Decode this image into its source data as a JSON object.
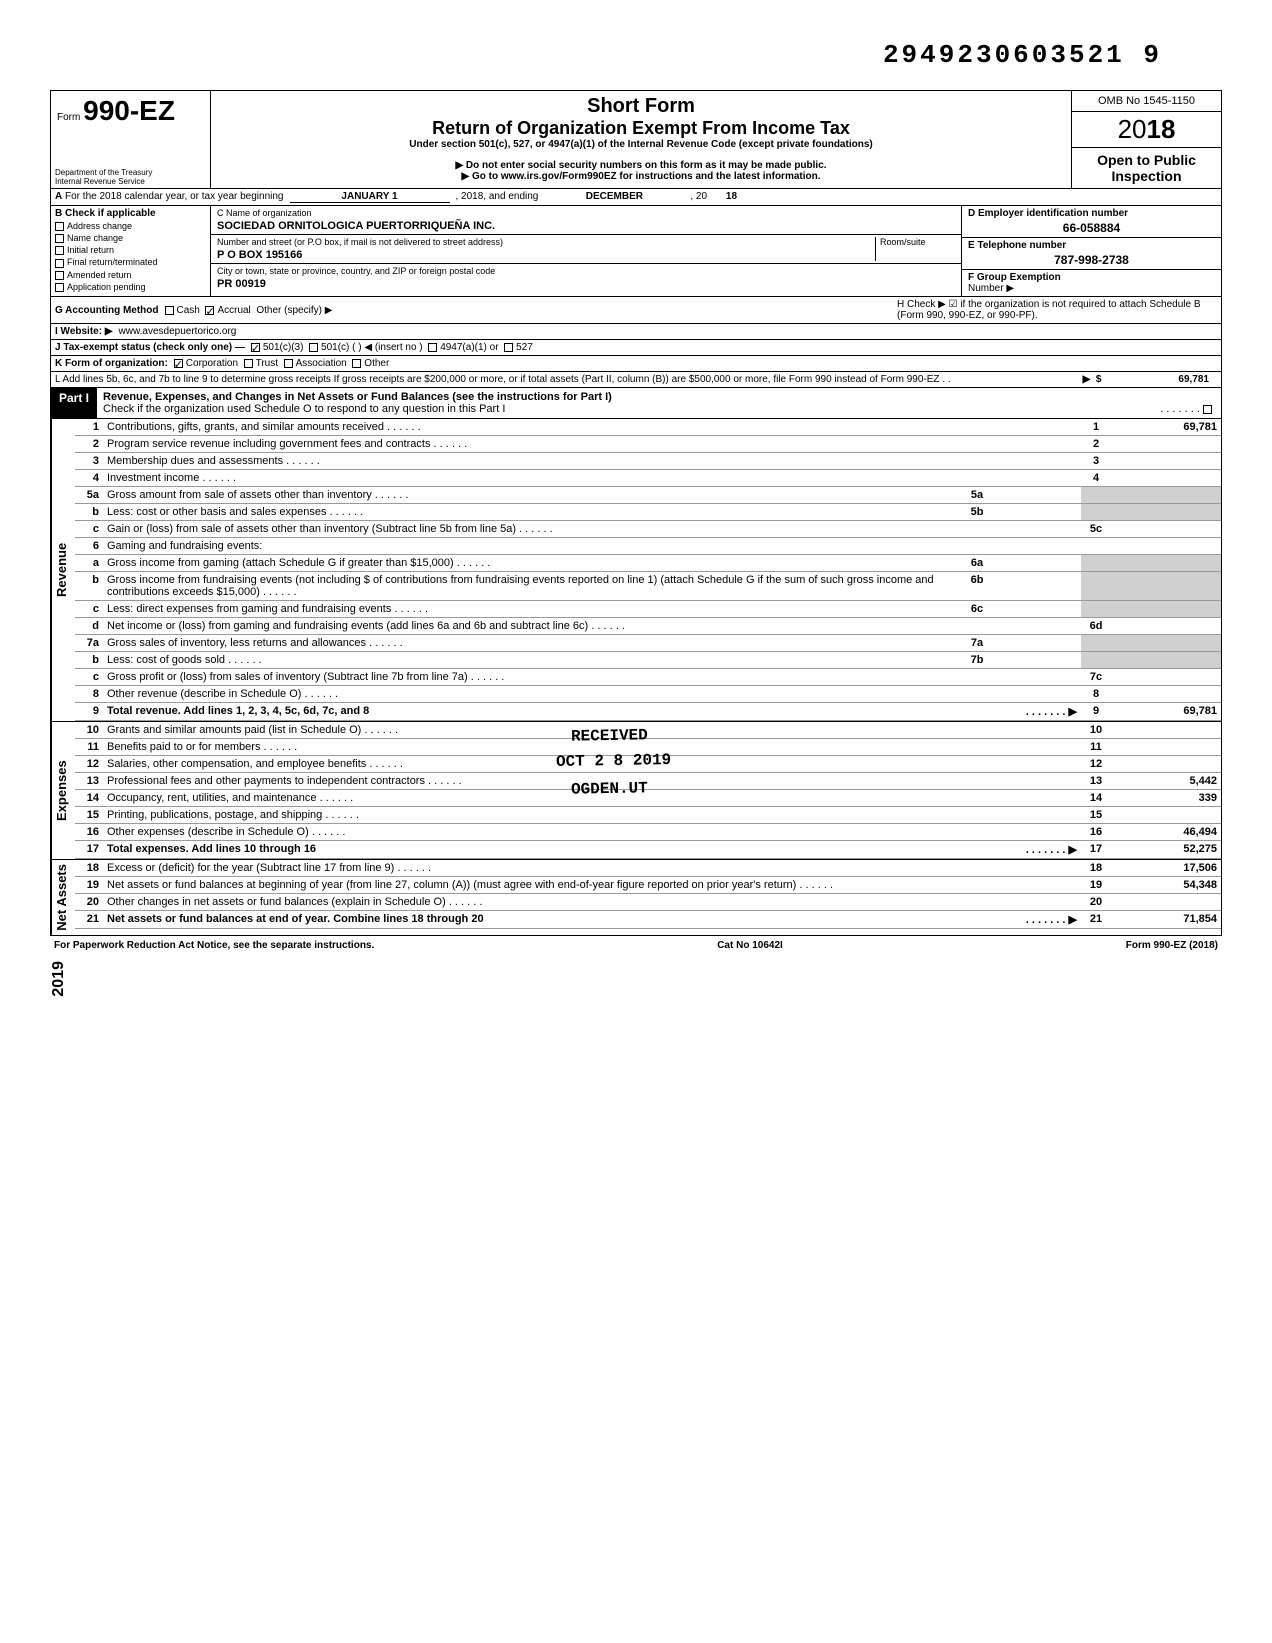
{
  "top_number": "2949230603521 9",
  "header": {
    "form_prefix": "Form",
    "form_number": "990-EZ",
    "title1": "Short Form",
    "title2": "Return of Organization Exempt From Income Tax",
    "subtitle": "Under section 501(c), 527, or 4947(a)(1) of the Internal Revenue Code (except private foundations)",
    "note1": "▶ Do not enter social security numbers on this form as it may be made public.",
    "note2": "▶ Go to www.irs.gov/Form990EZ for instructions and the latest information.",
    "dept": "Department of the Treasury\nInternal Revenue Service",
    "omb": "OMB No 1545-1150",
    "year_prefix": "20",
    "year_bold": "18",
    "public": "Open to Public Inspection"
  },
  "row_a": {
    "label": "A",
    "text": "For the 2018 calendar year, or tax year beginning",
    "begin_val": "JANUARY 1",
    "mid": ", 2018, and ending",
    "end_month": "DECEMBER",
    "end_text": ", 20",
    "end_yr": "18"
  },
  "col_b": {
    "header": "B Check if applicable",
    "items": [
      "Address change",
      "Name change",
      "Initial return",
      "Final return/terminated",
      "Amended return",
      "Application pending"
    ]
  },
  "org": {
    "c_label": "C  Name of organization",
    "name": "SOCIEDAD ORNITOLOGICA PUERTORRIQUEÑA INC.",
    "addr_label": "Number and street (or P.O  box, if mail is not delivered to street address)",
    "room_label": "Room/suite",
    "addr": "P O BOX 195166",
    "city_label": "City or town, state or province, country, and ZIP or foreign postal code",
    "city": "PR 00919"
  },
  "right_box": {
    "d_label": "D Employer identification number",
    "ein": "66-058884",
    "e_label": "E Telephone number",
    "phone": "787-998-2738",
    "f_label": "F Group Exemption",
    "f_label2": "Number ▶"
  },
  "g": {
    "label": "G Accounting Method",
    "opts": [
      "Cash",
      "Accrual"
    ],
    "other": "Other (specify) ▶",
    "checked": 1
  },
  "h": {
    "text": "H Check ▶ ☑ if the organization is not required to attach Schedule B (Form 990, 990-EZ, or 990-PF)."
  },
  "i": {
    "label": "I  Website: ▶",
    "val": "www.avesdepuertorico.org"
  },
  "j": {
    "label": "J Tax-exempt status (check only one) —",
    "opts": [
      "501(c)(3)",
      "501(c) (    ) ◀ (insert no )",
      "4947(a)(1) or",
      "527"
    ],
    "checked": 0
  },
  "k": {
    "label": "K Form of organization:",
    "opts": [
      "Corporation",
      "Trust",
      "Association",
      "Other"
    ],
    "checked": 0
  },
  "l": {
    "text": "L  Add lines 5b, 6c, and 7b to line 9 to determine gross receipts  If gross receipts are $200,000 or more, or if total assets (Part II, column (B)) are $500,000 or more, file Form 990 instead of Form 990-EZ . .",
    "amount": "69,781"
  },
  "part1": {
    "label": "Part I",
    "title": "Revenue, Expenses, and Changes in Net Assets or Fund Balances (see the instructions for Part I)",
    "check_text": "Check if the organization used Schedule O to respond to any question in this Part I"
  },
  "sections": {
    "revenue_label": "Revenue",
    "expenses_label": "Expenses",
    "netassets_label": "Net Assets"
  },
  "lines": [
    {
      "n": "1",
      "d": "Contributions, gifts, grants, and similar amounts received",
      "box": "1",
      "amt": "69,781"
    },
    {
      "n": "2",
      "d": "Program service revenue including government fees and contracts",
      "box": "2",
      "amt": ""
    },
    {
      "n": "3",
      "d": "Membership dues and assessments",
      "box": "3",
      "amt": ""
    },
    {
      "n": "4",
      "d": "Investment income",
      "box": "4",
      "amt": ""
    },
    {
      "n": "5a",
      "d": "Gross amount from sale of assets other than inventory",
      "ibox": "5a"
    },
    {
      "n": "b",
      "d": "Less: cost or other basis and sales expenses",
      "ibox": "5b"
    },
    {
      "n": "c",
      "d": "Gain or (loss) from sale of assets other than inventory (Subtract line 5b from line 5a)",
      "box": "5c",
      "amt": ""
    },
    {
      "n": "6",
      "d": "Gaming and fundraising events:"
    },
    {
      "n": "a",
      "d": "Gross income from gaming (attach Schedule G if greater than $15,000)",
      "ibox": "6a"
    },
    {
      "n": "b",
      "d": "Gross income from fundraising events (not including  $                    of contributions from fundraising events reported on line 1) (attach Schedule G if the sum of such gross income and contributions exceeds $15,000)",
      "ibox": "6b"
    },
    {
      "n": "c",
      "d": "Less: direct expenses from gaming and fundraising events",
      "ibox": "6c"
    },
    {
      "n": "d",
      "d": "Net income or (loss) from gaming and fundraising events (add lines 6a and 6b and subtract line 6c)",
      "box": "6d",
      "amt": ""
    },
    {
      "n": "7a",
      "d": "Gross sales of inventory, less returns and allowances",
      "ibox": "7a"
    },
    {
      "n": "b",
      "d": "Less: cost of goods sold",
      "ibox": "7b"
    },
    {
      "n": "c",
      "d": "Gross profit or (loss) from sales of inventory (Subtract line 7b from line 7a)",
      "box": "7c",
      "amt": ""
    },
    {
      "n": "8",
      "d": "Other revenue (describe in Schedule O)",
      "box": "8",
      "amt": ""
    },
    {
      "n": "9",
      "d": "Total revenue. Add lines 1, 2, 3, 4, 5c, 6d, 7c, and 8",
      "box": "9",
      "amt": "69,781",
      "bold": true,
      "arrow": true
    }
  ],
  "exp_lines": [
    {
      "n": "10",
      "d": "Grants and similar amounts paid (list in Schedule O)",
      "box": "10",
      "amt": ""
    },
    {
      "n": "11",
      "d": "Benefits paid to or for members",
      "box": "11",
      "amt": ""
    },
    {
      "n": "12",
      "d": "Salaries, other compensation, and employee benefits",
      "box": "12",
      "amt": ""
    },
    {
      "n": "13",
      "d": "Professional fees and other payments to independent contractors",
      "box": "13",
      "amt": "5,442"
    },
    {
      "n": "14",
      "d": "Occupancy, rent, utilities, and maintenance",
      "box": "14",
      "amt": "339"
    },
    {
      "n": "15",
      "d": "Printing, publications, postage, and shipping",
      "box": "15",
      "amt": ""
    },
    {
      "n": "16",
      "d": "Other expenses (describe in Schedule O)",
      "box": "16",
      "amt": "46,494"
    },
    {
      "n": "17",
      "d": "Total expenses. Add lines 10 through 16",
      "box": "17",
      "amt": "52,275",
      "bold": true,
      "arrow": true
    }
  ],
  "na_lines": [
    {
      "n": "18",
      "d": "Excess or (deficit) for the year (Subtract line 17 from line 9)",
      "box": "18",
      "amt": "17,506"
    },
    {
      "n": "19",
      "d": "Net assets or fund balances at beginning of year (from line 27, column (A)) (must agree with end-of-year figure reported on prior year's return)",
      "box": "19",
      "amt": "54,348"
    },
    {
      "n": "20",
      "d": "Other changes in net assets or fund balances (explain in Schedule O)",
      "box": "20",
      "amt": ""
    },
    {
      "n": "21",
      "d": "Net assets or fund balances at end of year. Combine lines 18 through 20",
      "box": "21",
      "amt": "71,854",
      "bold": true,
      "arrow": true
    }
  ],
  "footer": {
    "left": "For Paperwork Reduction Act Notice, see the separate instructions.",
    "mid": "Cat No  10642I",
    "right": "Form 990-EZ (2018)"
  },
  "stamps": {
    "received": "RECEIVED",
    "date": "OCT 2 8 2019",
    "loc": "OGDEN.UT",
    "side": "2019"
  }
}
